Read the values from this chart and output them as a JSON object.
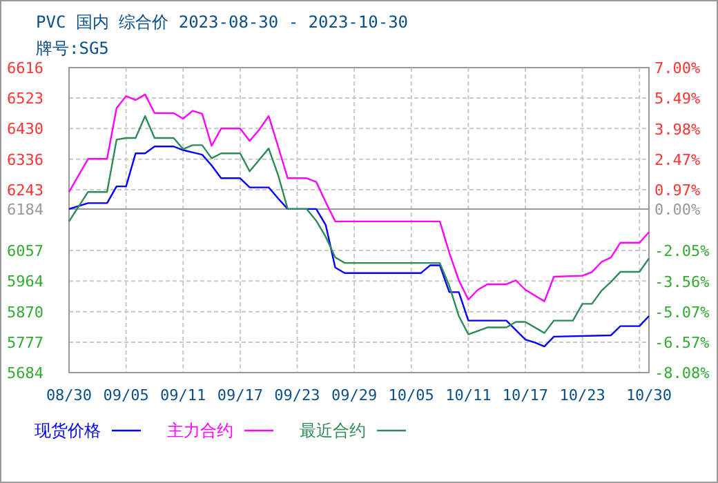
{
  "chart_data": {
    "type": "line",
    "title": "PVC 国内 综合价 2023-08-30 - 2023-10-30",
    "subtitle": "牌号:SG5",
    "xlim": [
      "2023-08-30",
      "2023-10-30"
    ],
    "xticks": [
      {
        "value": "2023-08-30",
        "label": "08/30"
      },
      {
        "value": "2023-09-05",
        "label": "09/05"
      },
      {
        "value": "2023-09-11",
        "label": "09/11"
      },
      {
        "value": "2023-09-17",
        "label": "09/17"
      },
      {
        "value": "2023-09-23",
        "label": "09/23"
      },
      {
        "value": "2023-09-29",
        "label": "09/29"
      },
      {
        "value": "2023-10-05",
        "label": "10/05"
      },
      {
        "value": "2023-10-11",
        "label": "10/11"
      },
      {
        "value": "2023-10-17",
        "label": "10/17"
      },
      {
        "value": "2023-10-23",
        "label": "10/23"
      },
      {
        "value": "2023-10-29",
        "label": null
      },
      {
        "value": "2023-10-30",
        "label": "10/30"
      }
    ],
    "ylim": [
      5684,
      6616
    ],
    "yticks": [
      5684,
      5777,
      5870,
      5964,
      6057,
      6184,
      6243,
      6336,
      6430,
      6523,
      6616
    ],
    "y2lim": [
      -8.08,
      7.0
    ],
    "y2ticks": [
      {
        "value": -8.08,
        "label": "-8.08%"
      },
      {
        "value": -6.57,
        "label": "-6.57%"
      },
      {
        "value": -5.07,
        "label": "-5.07%"
      },
      {
        "value": -3.56,
        "label": "-3.56%"
      },
      {
        "value": -2.05,
        "label": "-2.05%"
      },
      {
        "value": 0,
        "label": "0.00%"
      },
      {
        "value": 0.97,
        "label": "0.97%"
      },
      {
        "value": 2.47,
        "label": "2.47%"
      },
      {
        "value": 3.98,
        "label": "3.98%"
      },
      {
        "value": 5.49,
        "label": "5.49%"
      },
      {
        "value": 7.0,
        "label": "7.00%"
      }
    ],
    "grid": true,
    "legend": "bottom",
    "line_style": "solid",
    "ref_lines": [
      {
        "axis": "y",
        "value": 6184,
        "color": "#999999"
      }
    ],
    "series": [
      {
        "name": "现货价格",
        "color": "#0000ff",
        "x": [
          "2023-08-30",
          "2023-09-01",
          "2023-09-03",
          "2023-09-04",
          "2023-09-05",
          "2023-09-06",
          "2023-09-07",
          "2023-09-08",
          "2023-09-10",
          "2023-09-11",
          "2023-09-12",
          "2023-09-13",
          "2023-09-14",
          "2023-09-15",
          "2023-09-17",
          "2023-09-18",
          "2023-09-20",
          "2023-09-21",
          "2023-09-22",
          "2023-09-25",
          "2023-09-26",
          "2023-09-27",
          "2023-09-28",
          "2023-10-06",
          "2023-10-07",
          "2023-10-08",
          "2023-10-09",
          "2023-10-10",
          "2023-10-11",
          "2023-10-15",
          "2023-10-16",
          "2023-10-17",
          "2023-10-18",
          "2023-10-19",
          "2023-10-20",
          "2023-10-26",
          "2023-10-27",
          "2023-10-29",
          "2023-10-30"
        ],
        "values": [
          6184,
          6202,
          6202,
          6253,
          6253,
          6354,
          6354,
          6375,
          6375,
          6364,
          6357,
          6350,
          6317,
          6278,
          6278,
          6250,
          6250,
          6216,
          6184,
          6184,
          6135,
          6005,
          5988,
          5988,
          6012,
          6012,
          5930,
          5930,
          5843,
          5843,
          5814,
          5785,
          5776,
          5764,
          5794,
          5798,
          5826,
          5826,
          5857
        ]
      },
      {
        "name": "主力合约",
        "color": "#ff00ff",
        "x": [
          "2023-08-30",
          "2023-09-01",
          "2023-09-03",
          "2023-09-04",
          "2023-09-05",
          "2023-09-06",
          "2023-09-07",
          "2023-09-08",
          "2023-09-10",
          "2023-09-11",
          "2023-09-12",
          "2023-09-13",
          "2023-09-14",
          "2023-09-15",
          "2023-09-17",
          "2023-09-18",
          "2023-09-19",
          "2023-09-20",
          "2023-09-21",
          "2023-09-22",
          "2023-09-24",
          "2023-09-25",
          "2023-09-26",
          "2023-09-27",
          "2023-10-08",
          "2023-10-09",
          "2023-10-10",
          "2023-10-11",
          "2023-10-12",
          "2023-10-13",
          "2023-10-15",
          "2023-10-16",
          "2023-10-17",
          "2023-10-19",
          "2023-10-20",
          "2023-10-23",
          "2023-10-24",
          "2023-10-25",
          "2023-10-26",
          "2023-10-27",
          "2023-10-29",
          "2023-10-30"
        ],
        "values": [
          6236,
          6337,
          6337,
          6492,
          6529,
          6517,
          6534,
          6477,
          6477,
          6460,
          6484,
          6475,
          6377,
          6430,
          6430,
          6392,
          6426,
          6468,
          6374,
          6278,
          6278,
          6267,
          6205,
          6146,
          6146,
          6050,
          5966,
          5907,
          5937,
          5954,
          5954,
          5966,
          5937,
          5902,
          5977,
          5980,
          5991,
          6022,
          6036,
          6081,
          6081,
          6113
        ]
      },
      {
        "name": "最近合约",
        "color": "#2e8b57",
        "x": [
          "2023-08-30",
          "2023-09-01",
          "2023-09-03",
          "2023-09-04",
          "2023-09-05",
          "2023-09-06",
          "2023-09-07",
          "2023-09-08",
          "2023-09-10",
          "2023-09-11",
          "2023-09-12",
          "2023-09-13",
          "2023-09-14",
          "2023-09-15",
          "2023-09-17",
          "2023-09-18",
          "2023-09-20",
          "2023-09-21",
          "2023-09-22",
          "2023-09-24",
          "2023-09-25",
          "2023-09-26",
          "2023-09-27",
          "2023-09-28",
          "2023-10-08",
          "2023-10-09",
          "2023-10-10",
          "2023-10-11",
          "2023-10-13",
          "2023-10-15",
          "2023-10-16",
          "2023-10-17",
          "2023-10-19",
          "2023-10-20",
          "2023-10-22",
          "2023-10-23",
          "2023-10-24",
          "2023-10-25",
          "2023-10-26",
          "2023-10-27",
          "2023-10-29",
          "2023-10-30"
        ],
        "values": [
          6146,
          6236,
          6236,
          6396,
          6401,
          6401,
          6468,
          6401,
          6401,
          6367,
          6379,
          6379,
          6339,
          6354,
          6354,
          6299,
          6369,
          6287,
          6184,
          6184,
          6148,
          6099,
          6036,
          6019,
          6019,
          5949,
          5857,
          5801,
          5822,
          5822,
          5839,
          5839,
          5805,
          5843,
          5843,
          5894,
          5894,
          5934,
          5961,
          5992,
          5992,
          6033
        ]
      }
    ]
  }
}
